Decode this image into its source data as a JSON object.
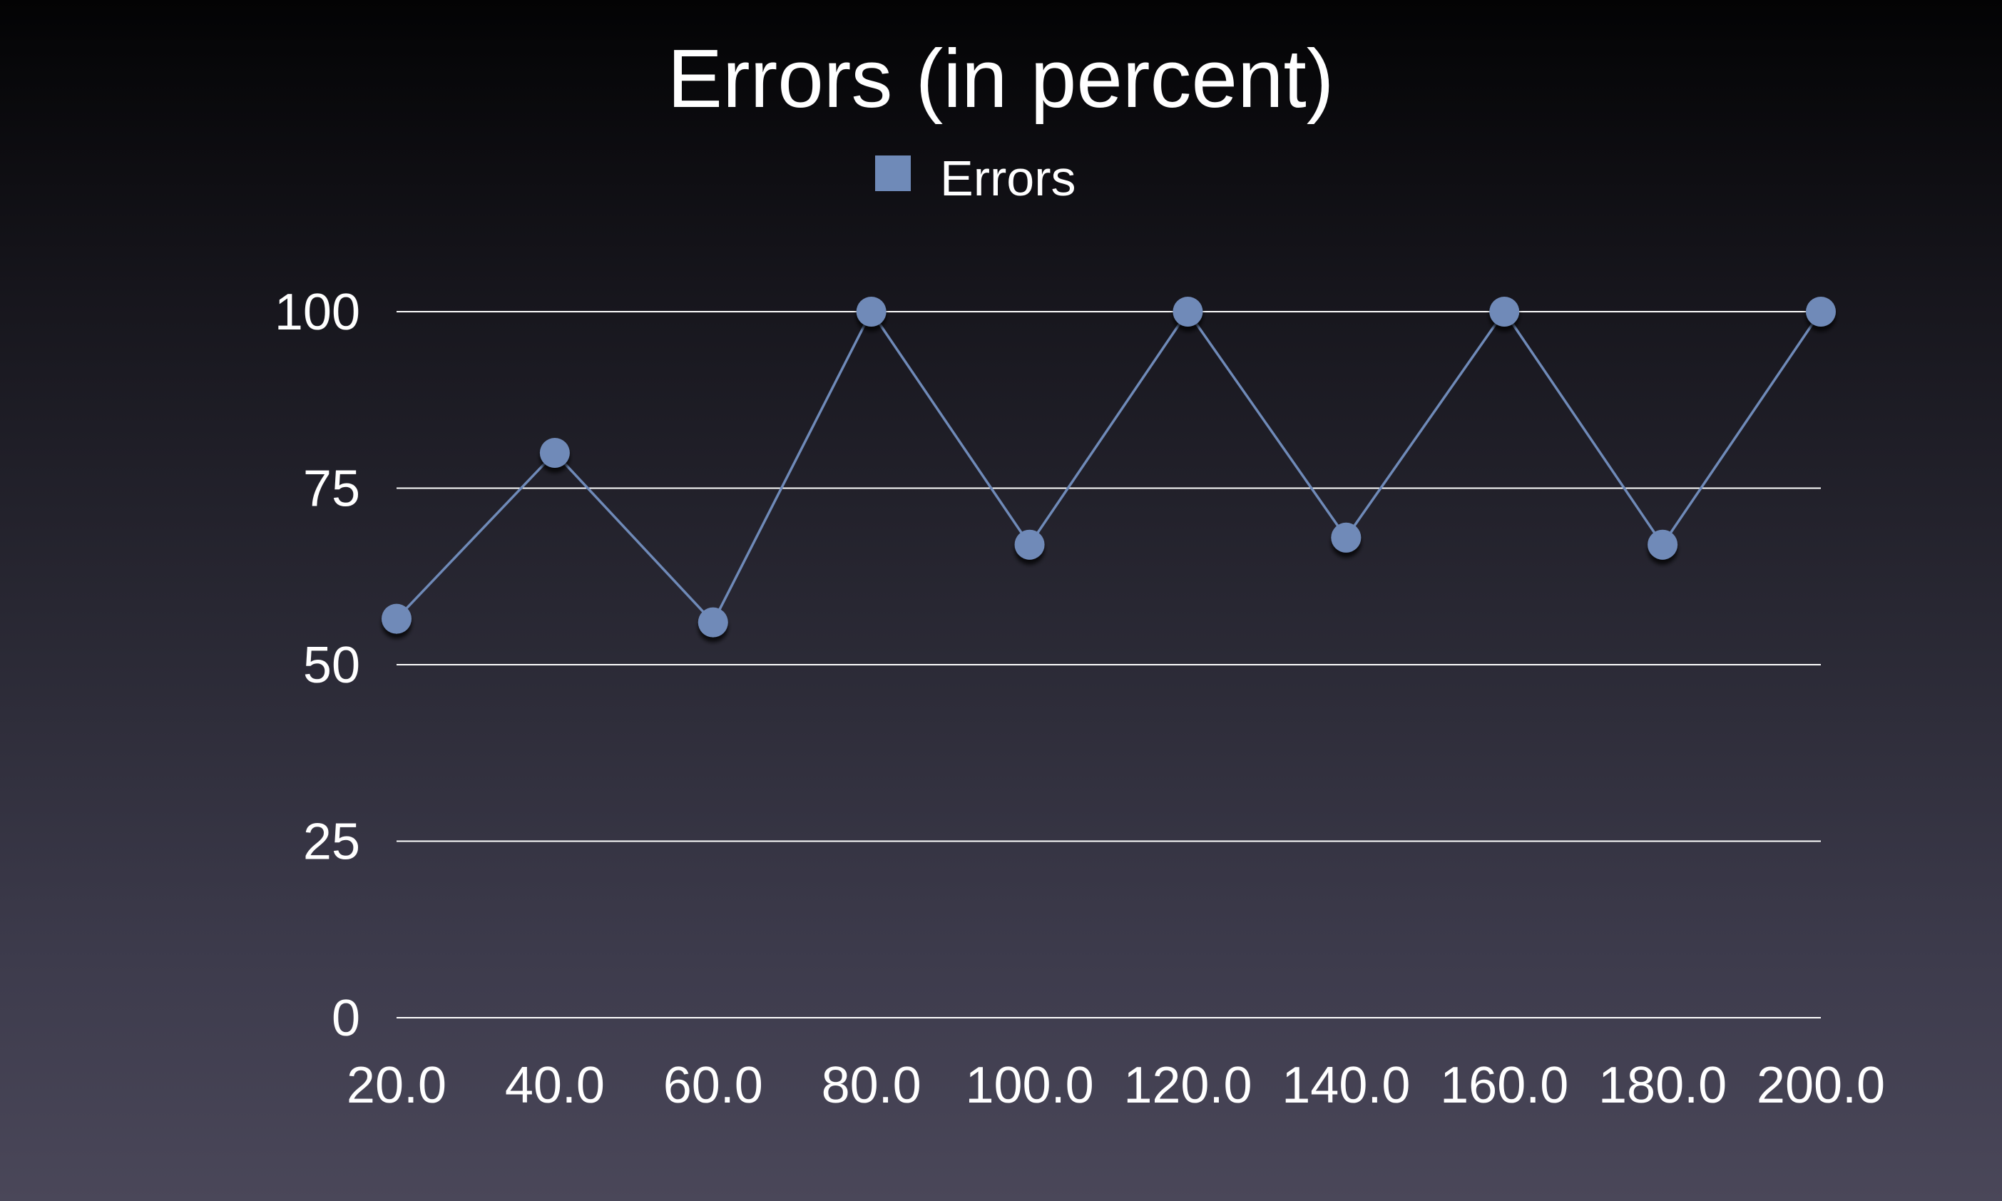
{
  "chart_data": {
    "type": "line",
    "title": "Errors (in percent)",
    "xlabel": "",
    "ylabel": "",
    "categories": [
      "20.0",
      "40.0",
      "60.0",
      "80.0",
      "100.0",
      "120.0",
      "140.0",
      "160.0",
      "180.0",
      "200.0"
    ],
    "series": [
      {
        "name": "Errors",
        "color": "#6f8ab8",
        "values": [
          56.5,
          80,
          56,
          100,
          67,
          100,
          68,
          100,
          67,
          100
        ]
      }
    ],
    "ylim": [
      0,
      100
    ],
    "yticks": [
      "0",
      "25",
      "50",
      "75",
      "100"
    ],
    "grid": true,
    "legend_position": "top-center"
  }
}
